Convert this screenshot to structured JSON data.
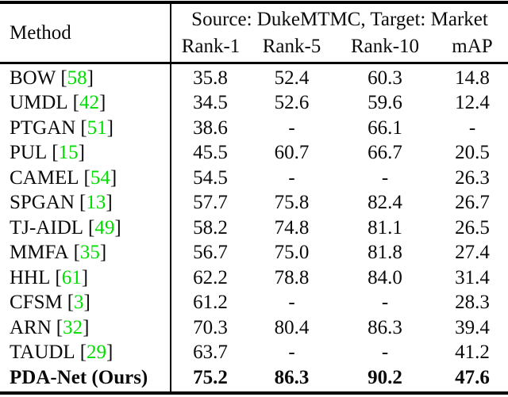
{
  "table": {
    "header": {
      "method_label": "Method",
      "span_label": "Source: DukeMTMC, Target: Market",
      "columns": [
        "Rank-1",
        "Rank-5",
        "Rank-10",
        "mAP"
      ]
    },
    "rows": [
      {
        "name": "BOW",
        "cite_open": "[",
        "cite": "58",
        "cite_close": "]",
        "rank1": "35.8",
        "rank5": "52.4",
        "rank10": "60.3",
        "map": "14.8"
      },
      {
        "name": "UMDL",
        "cite_open": "[",
        "cite": "42",
        "cite_close": "]",
        "rank1": "34.5",
        "rank5": "52.6",
        "rank10": "59.6",
        "map": "12.4"
      },
      {
        "name": "PTGAN",
        "cite_open": "[",
        "cite": "51",
        "cite_close": "]",
        "rank1": "38.6",
        "rank5": "-",
        "rank10": "66.1",
        "map": "-"
      },
      {
        "name": "PUL",
        "cite_open": "[",
        "cite": "15",
        "cite_close": "]",
        "rank1": "45.5",
        "rank5": "60.7",
        "rank10": "66.7",
        "map": "20.5"
      },
      {
        "name": "CAMEL",
        "cite_open": "[",
        "cite": "54",
        "cite_close": "]",
        "rank1": "54.5",
        "rank5": "-",
        "rank10": "-",
        "map": "26.3"
      },
      {
        "name": "SPGAN",
        "cite_open": "[",
        "cite": "13",
        "cite_close": "]",
        "rank1": "57.7",
        "rank5": "75.8",
        "rank10": "82.4",
        "map": "26.7"
      },
      {
        "name": "TJ-AIDL",
        "cite_open": "[",
        "cite": "49",
        "cite_close": "]",
        "rank1": "58.2",
        "rank5": "74.8",
        "rank10": "81.1",
        "map": "26.5"
      },
      {
        "name": "MMFA",
        "cite_open": "[",
        "cite": "35",
        "cite_close": "]",
        "rank1": "56.7",
        "rank5": "75.0",
        "rank10": "81.8",
        "map": "27.4"
      },
      {
        "name": "HHL",
        "cite_open": "[",
        "cite": "61",
        "cite_close": "]",
        "rank1": "62.2",
        "rank5": "78.8",
        "rank10": "84.0",
        "map": "31.4"
      },
      {
        "name": "CFSM",
        "cite_open": "[",
        "cite": "3",
        "cite_close": "]",
        "rank1": "61.2",
        "rank5": "-",
        "rank10": "-",
        "map": "28.3"
      },
      {
        "name": "ARN",
        "cite_open": "[",
        "cite": "32",
        "cite_close": "]",
        "rank1": "70.3",
        "rank5": "80.4",
        "rank10": "86.3",
        "map": "39.4"
      },
      {
        "name": "TAUDL",
        "cite_open": "[",
        "cite": "29",
        "cite_close": "]",
        "rank1": "63.7",
        "rank5": "-",
        "rank10": "-",
        "map": "41.2"
      },
      {
        "name": "PDA-Net (Ours)",
        "cite_open": "",
        "cite": "",
        "cite_close": "",
        "rank1": "75.2",
        "rank5": "86.3",
        "rank10": "90.2",
        "map": "47.6"
      }
    ],
    "colors": {
      "citation_green": "#00dd00",
      "text": "#0a0a0a",
      "rule": "#000000"
    }
  }
}
